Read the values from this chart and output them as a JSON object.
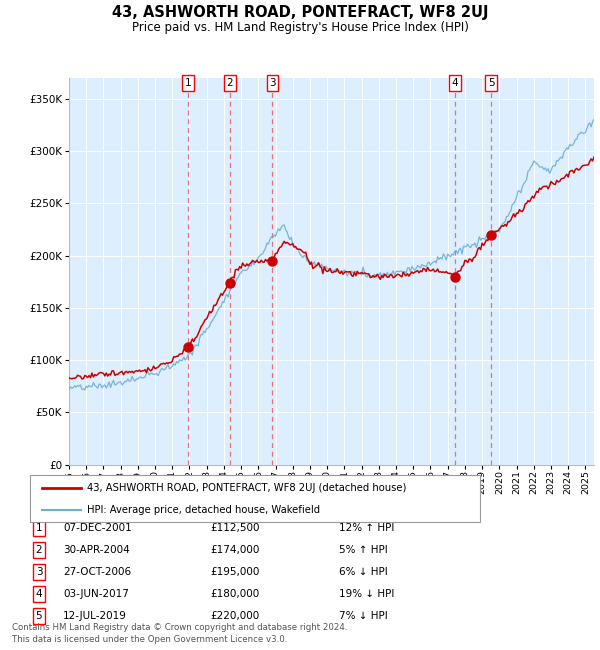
{
  "title": "43, ASHWORTH ROAD, PONTEFRACT, WF8 2UJ",
  "subtitle": "Price paid vs. HM Land Registry's House Price Index (HPI)",
  "legend_line1": "43, ASHWORTH ROAD, PONTEFRACT, WF8 2UJ (detached house)",
  "legend_line2": "HPI: Average price, detached house, Wakefield",
  "footer1": "Contains HM Land Registry data © Crown copyright and database right 2024.",
  "footer2": "This data is licensed under the Open Government Licence v3.0.",
  "sale_events": [
    {
      "label": "1",
      "date": "07-DEC-2001",
      "price": 112500,
      "pct": "12%",
      "dir": "↑",
      "x_year": 2001.93
    },
    {
      "label": "2",
      "date": "30-APR-2004",
      "price": 174000,
      "pct": "5%",
      "dir": "↑",
      "x_year": 2004.33
    },
    {
      "label": "3",
      "date": "27-OCT-2006",
      "price": 195000,
      "pct": "6%",
      "dir": "↓",
      "x_year": 2006.82
    },
    {
      "label": "4",
      "date": "03-JUN-2017",
      "price": 180000,
      "pct": "19%",
      "dir": "↓",
      "x_year": 2017.42
    },
    {
      "label": "5",
      "date": "12-JUL-2019",
      "price": 220000,
      "pct": "7%",
      "dir": "↓",
      "x_year": 2019.53
    }
  ],
  "hpi_color": "#6baed6",
  "price_color": "#cc0000",
  "dot_color": "#cc0000",
  "vline_color": "#e06060",
  "bg_color": "#ddeeff",
  "grid_color": "#ffffff",
  "ylim": [
    0,
    370000
  ],
  "xlim_start": 1995.0,
  "xlim_end": 2025.5,
  "yticks": [
    0,
    50000,
    100000,
    150000,
    200000,
    250000,
    300000,
    350000
  ],
  "xticks": [
    1995,
    1996,
    1997,
    1998,
    1999,
    2000,
    2001,
    2002,
    2003,
    2004,
    2005,
    2006,
    2007,
    2008,
    2009,
    2010,
    2011,
    2012,
    2013,
    2014,
    2015,
    2016,
    2017,
    2018,
    2019,
    2020,
    2021,
    2022,
    2023,
    2024,
    2025
  ]
}
